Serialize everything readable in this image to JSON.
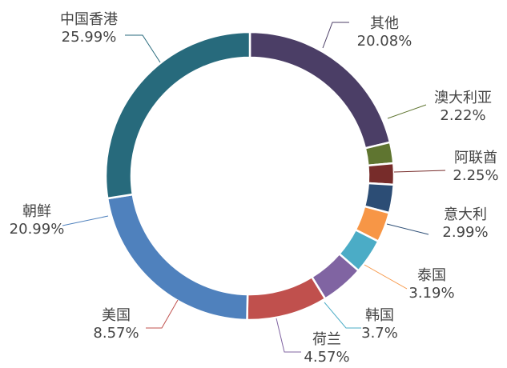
{
  "chart_data": {
    "type": "pie",
    "variant": "donut",
    "title": "",
    "legend": "none",
    "slices": [
      {
        "label": "其他",
        "value": 20.08,
        "value_text": "20.08%",
        "color": "#4B3E66"
      },
      {
        "label": "澳大利亚",
        "value": 2.22,
        "value_text": "2.22%",
        "color": "#5F7530"
      },
      {
        "label": "阿联酋",
        "value": 2.25,
        "value_text": "2.25%",
        "color": "#772C2A"
      },
      {
        "label": "意大利",
        "value": 2.99,
        "value_text": "2.99%",
        "color": "#2C4D75"
      },
      {
        "label": "泰国",
        "value": 3.19,
        "value_text": "3.19%",
        "color": "#F79646"
      },
      {
        "label": "韩国",
        "value": 3.7,
        "value_text": "3.7%",
        "color": "#4BACC6"
      },
      {
        "label": "荷兰",
        "value": 4.57,
        "value_text": "4.57%",
        "color": "#8064A2"
      },
      {
        "label": "美国",
        "value": 8.57,
        "value_text": "8.57%",
        "color": "#C0504D"
      },
      {
        "label": "朝鲜",
        "value": 20.99,
        "value_text": "20.99%",
        "color": "#4F81BD"
      },
      {
        "label": "中国香港",
        "value": 25.99,
        "value_text": "25.99%",
        "color": "#276A7C"
      }
    ]
  }
}
